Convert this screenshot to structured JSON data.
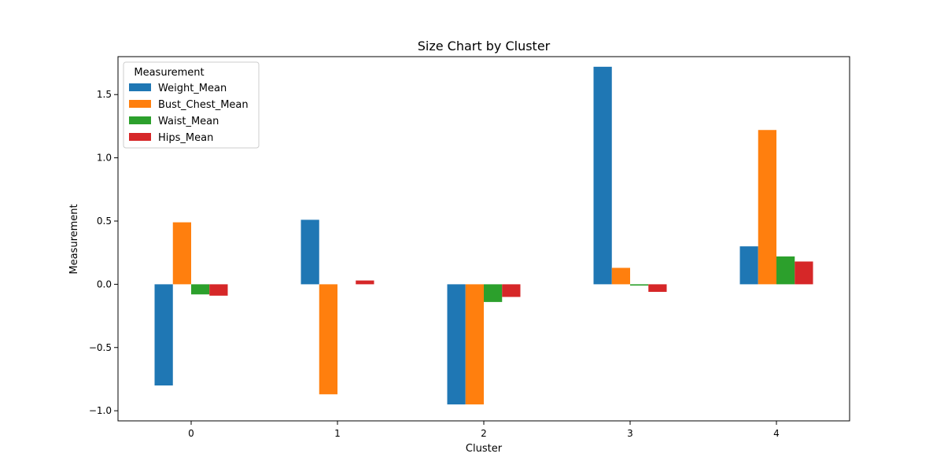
{
  "chart_data": {
    "type": "bar",
    "title": "Size Chart by Cluster",
    "xlabel": "Cluster",
    "ylabel": "Measurement",
    "categories": [
      "0",
      "1",
      "2",
      "3",
      "4"
    ],
    "ylim": [
      -1.08,
      1.8
    ],
    "yticks": [
      -1.0,
      -0.5,
      0.0,
      0.5,
      1.0,
      1.5
    ],
    "ytick_labels": [
      "−1.0",
      "−0.5",
      "0.0",
      "0.5",
      "1.0",
      "1.5"
    ],
    "grid": false,
    "legend": {
      "title": "Measurement",
      "position": "top-left"
    },
    "series": [
      {
        "name": "Weight_Mean",
        "color": "#1f77b4",
        "values": [
          -0.8,
          0.51,
          -0.95,
          1.72,
          0.3
        ]
      },
      {
        "name": "Bust_Chest_Mean",
        "color": "#ff7f0e",
        "values": [
          0.49,
          -0.87,
          -0.95,
          0.13,
          1.22
        ]
      },
      {
        "name": "Waist_Mean",
        "color": "#2ca02c",
        "values": [
          -0.08,
          0.0,
          -0.14,
          -0.01,
          0.22
        ]
      },
      {
        "name": "Hips_Mean",
        "color": "#d62728",
        "values": [
          -0.09,
          0.03,
          -0.1,
          -0.06,
          0.18
        ]
      }
    ]
  }
}
